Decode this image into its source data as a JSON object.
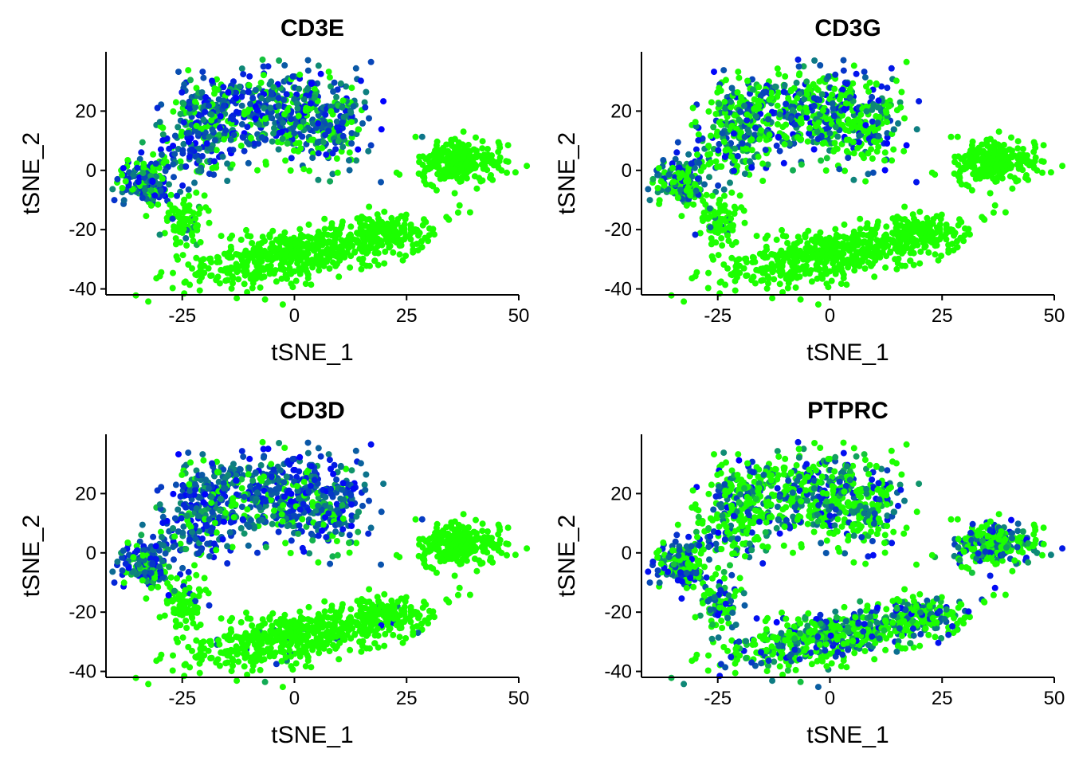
{
  "chart_data": [
    {
      "type": "scatter",
      "title": "CD3E",
      "xlabel": "tSNE_1",
      "ylabel": "tSNE_2",
      "xlim": [
        -42,
        50
      ],
      "ylim": [
        -42,
        40
      ],
      "xticks": [
        "-25",
        "0",
        "25",
        "50"
      ],
      "xtick_values": [
        -25,
        0,
        25,
        50
      ],
      "yticks": [
        "-40",
        "-20",
        "0",
        "20"
      ],
      "ytick_values": [
        -40,
        -20,
        0,
        20
      ],
      "color_scale": {
        "low": "#1cff00",
        "high": "#0000ff"
      },
      "expression_pattern": {
        "upper_left_cluster": 0.65,
        "far_left_cluster": 0.55,
        "small_left_cluster": 0.08,
        "right_cluster": 0.0,
        "lower_cluster": 0.0
      },
      "grid": false
    },
    {
      "type": "scatter",
      "title": "CD3G",
      "xlabel": "tSNE_1",
      "ylabel": "tSNE_2",
      "xlim": [
        -42,
        50
      ],
      "ylim": [
        -42,
        40
      ],
      "xticks": [
        "-25",
        "0",
        "25",
        "50"
      ],
      "xtick_values": [
        -25,
        0,
        25,
        50
      ],
      "yticks": [
        "-40",
        "-20",
        "0",
        "20"
      ],
      "ytick_values": [
        -40,
        -20,
        0,
        20
      ],
      "color_scale": {
        "low": "#1cff00",
        "high": "#0000ff"
      },
      "expression_pattern": {
        "upper_left_cluster": 0.4,
        "far_left_cluster": 0.45,
        "small_left_cluster": 0.05,
        "right_cluster": 0.0,
        "lower_cluster": 0.0
      },
      "grid": false
    },
    {
      "type": "scatter",
      "title": "CD3D",
      "xlabel": "tSNE_1",
      "ylabel": "tSNE_2",
      "xlim": [
        -42,
        50
      ],
      "ylim": [
        -42,
        40
      ],
      "xticks": [
        "-25",
        "0",
        "25",
        "50"
      ],
      "xtick_values": [
        -25,
        0,
        25,
        50
      ],
      "yticks": [
        "-40",
        "-20",
        "0",
        "20"
      ],
      "ytick_values": [
        -40,
        -20,
        0,
        20
      ],
      "color_scale": {
        "low": "#1cff00",
        "high": "#0000ff"
      },
      "expression_pattern": {
        "upper_left_cluster": 0.75,
        "far_left_cluster": 0.7,
        "small_left_cluster": 0.1,
        "right_cluster": 0.0,
        "lower_cluster": 0.02
      },
      "grid": false
    },
    {
      "type": "scatter",
      "title": "PTPRC",
      "xlabel": "tSNE_1",
      "ylabel": "tSNE_2",
      "xlim": [
        -42,
        50
      ],
      "ylim": [
        -42,
        40
      ],
      "xticks": [
        "-25",
        "0",
        "25",
        "50"
      ],
      "xtick_values": [
        -25,
        0,
        25,
        50
      ],
      "yticks": [
        "-40",
        "-20",
        "0",
        "20"
      ],
      "ytick_values": [
        -40,
        -20,
        0,
        20
      ],
      "color_scale": {
        "low": "#1cff00",
        "high": "#0000ff"
      },
      "expression_pattern": {
        "upper_left_cluster": 0.35,
        "far_left_cluster": 0.4,
        "small_left_cluster": 0.4,
        "right_cluster": 0.35,
        "lower_cluster": 0.35
      },
      "grid": false
    }
  ]
}
